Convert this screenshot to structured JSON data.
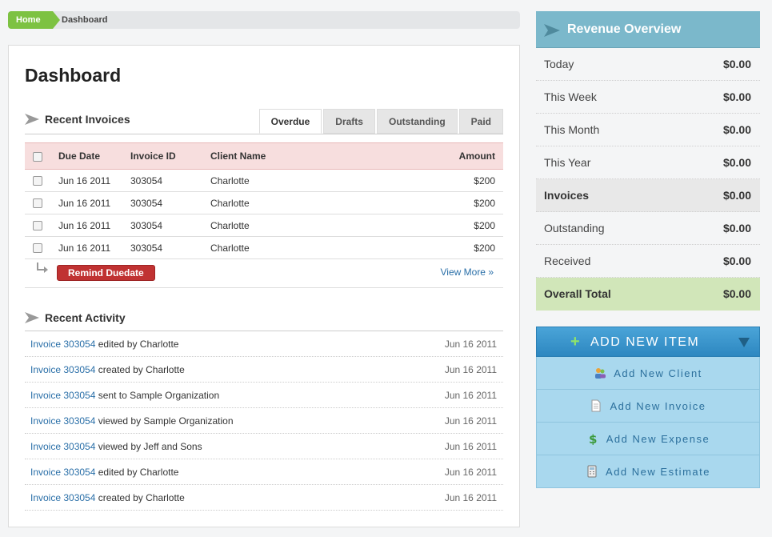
{
  "breadcrumb": {
    "home": "Home",
    "current": "Dashboard"
  },
  "page_title": "Dashboard",
  "invoices": {
    "title": "Recent Invoices",
    "tabs": [
      {
        "label": "Overdue",
        "active": true
      },
      {
        "label": "Drafts",
        "active": false
      },
      {
        "label": "Outstanding",
        "active": false
      },
      {
        "label": "Paid",
        "active": false
      }
    ],
    "columns": [
      "Due Date",
      "Invoice ID",
      "Client Name",
      "Amount"
    ],
    "rows": [
      {
        "due": "Jun 16 2011",
        "id": "303054",
        "client": "Charlotte",
        "amount": "$200"
      },
      {
        "due": "Jun 16 2011",
        "id": "303054",
        "client": "Charlotte",
        "amount": "$200"
      },
      {
        "due": "Jun 16 2011",
        "id": "303054",
        "client": "Charlotte",
        "amount": "$200"
      },
      {
        "due": "Jun 16 2011",
        "id": "303054",
        "client": "Charlotte",
        "amount": "$200"
      }
    ],
    "remind_label": "Remind Duedate",
    "view_more": "View More »"
  },
  "activity": {
    "title": "Recent Activity",
    "items": [
      {
        "link": "Invoice 303054",
        "text": " edited by Charlotte",
        "date": "Jun 16 2011"
      },
      {
        "link": "Invoice 303054",
        "text": " created by Charlotte",
        "date": "Jun 16 2011"
      },
      {
        "link": "Invoice 303054",
        "text": " sent to Sample Organization",
        "date": "Jun 16 2011"
      },
      {
        "link": "Invoice 303054",
        "text": " viewed by Sample Organization",
        "date": "Jun 16 2011"
      },
      {
        "link": "Invoice 303054",
        "text": " viewed by Jeff and Sons",
        "date": "Jun 16 2011"
      },
      {
        "link": "Invoice 303054",
        "text": " edited by Charlotte",
        "date": "Jun 16 2011"
      },
      {
        "link": "Invoice 303054",
        "text": " created by Charlotte",
        "date": "Jun 16 2011"
      }
    ]
  },
  "revenue": {
    "title": "Revenue Overview",
    "rows": [
      {
        "label": "Today",
        "value": "$0.00",
        "style": ""
      },
      {
        "label": "This Week",
        "value": "$0.00",
        "style": ""
      },
      {
        "label": "This Month",
        "value": "$0.00",
        "style": ""
      },
      {
        "label": "This Year",
        "value": "$0.00",
        "style": ""
      },
      {
        "label": "Invoices",
        "value": "$0.00",
        "style": "invoices"
      },
      {
        "label": "Outstanding",
        "value": "$0.00",
        "style": ""
      },
      {
        "label": "Received",
        "value": "$0.00",
        "style": ""
      },
      {
        "label": "Overall Total",
        "value": "$0.00",
        "style": "total"
      }
    ]
  },
  "add_new": {
    "title": "ADD NEW ITEM",
    "items": [
      {
        "label": "Add New Client",
        "icon": "client-icon"
      },
      {
        "label": "Add New Invoice",
        "icon": "invoice-icon"
      },
      {
        "label": "Add New Expense",
        "icon": "expense-icon"
      },
      {
        "label": "Add New Estimate",
        "icon": "estimate-icon"
      }
    ]
  },
  "colors": {
    "home_green": "#7dc242",
    "link_blue": "#2a6fa8",
    "remind_red": "#c03232",
    "revenue_header": "#7bb8cb",
    "total_green": "#d1e6b9",
    "add_header_blue": "#2d87c0",
    "add_item_blue": "#a9d8ee"
  }
}
